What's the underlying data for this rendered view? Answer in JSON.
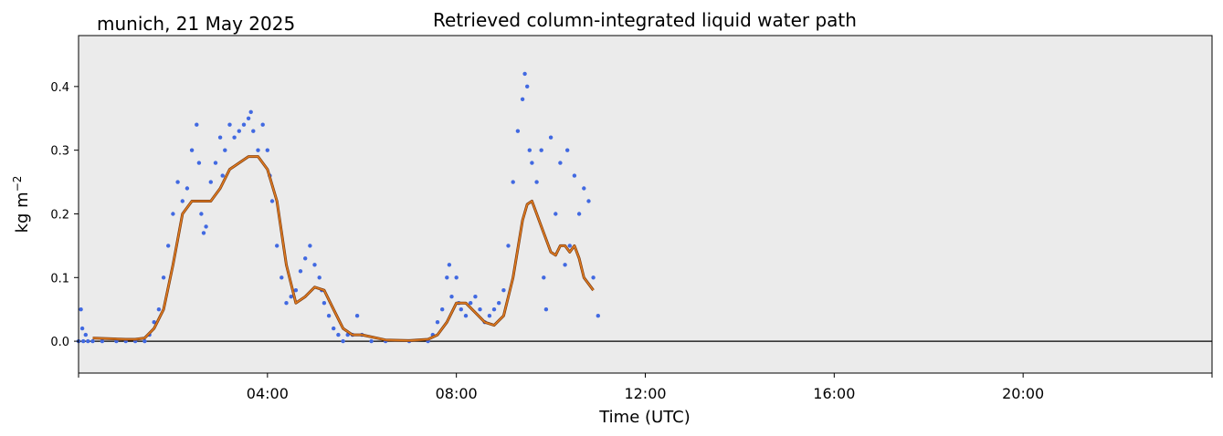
{
  "chart_data": {
    "type": "scatter",
    "title": "Retrieved column-integrated liquid water path",
    "subtitle": "munich, 21 May 2025",
    "xlabel": "Time (UTC)",
    "ylabel": "kg m",
    "ylabel_sup": "−2",
    "xlim": [
      0,
      24
    ],
    "ylim": [
      -0.05,
      0.48
    ],
    "x_ticks": [
      0,
      4,
      8,
      12,
      16,
      20,
      24
    ],
    "x_tick_labels": [
      "",
      "04:00",
      "08:00",
      "12:00",
      "16:00",
      "20:00",
      ""
    ],
    "y_ticks": [
      0.0,
      0.1,
      0.2,
      0.3,
      0.4
    ],
    "y_tick_labels": [
      "0.0",
      "0.1",
      "0.2",
      "0.3",
      "0.4"
    ],
    "grid": false,
    "zero_line": true,
    "colors": {
      "background": "#ebebeb",
      "scatter": "#4169e1",
      "smooth": "#e07b1f"
    },
    "series": [
      {
        "kind": "points",
        "x": [
          0.0,
          0.05,
          0.08,
          0.1,
          0.15,
          0.2,
          0.3,
          0.5,
          0.8,
          1.0,
          1.2,
          1.4,
          1.5,
          1.6,
          1.7,
          1.8,
          1.9,
          2.0,
          2.1,
          2.2,
          2.3,
          2.4,
          2.5,
          2.55,
          2.6,
          2.65,
          2.7,
          2.8,
          2.9,
          3.0,
          3.05,
          3.1,
          3.2,
          3.3,
          3.4,
          3.5,
          3.6,
          3.65,
          3.7,
          3.8,
          3.9,
          4.0,
          4.05,
          4.1,
          4.2,
          4.3,
          4.4,
          4.5,
          4.6,
          4.7,
          4.8,
          4.9,
          5.0,
          5.1,
          5.15,
          5.2,
          5.3,
          5.4,
          5.5,
          5.6,
          5.7,
          5.8,
          5.9,
          6.0,
          6.2,
          6.5,
          7.0,
          7.4,
          7.5,
          7.6,
          7.7,
          7.8,
          7.85,
          7.9,
          8.0,
          8.05,
          8.1,
          8.2,
          8.3,
          8.4,
          8.5,
          8.6,
          8.7,
          8.8,
          8.9,
          9.0,
          9.1,
          9.2,
          9.3,
          9.4,
          9.45,
          9.5,
          9.55,
          9.6,
          9.7,
          9.8,
          9.85,
          9.9,
          10.0,
          10.1,
          10.2,
          10.3,
          10.35,
          10.4,
          10.5,
          10.6,
          10.7,
          10.8,
          10.9,
          11.0
        ],
        "y": [
          0.0,
          0.05,
          0.02,
          0.0,
          0.01,
          0.0,
          0.0,
          0.0,
          0.0,
          0.0,
          0.0,
          0.0,
          0.01,
          0.03,
          0.05,
          0.1,
          0.15,
          0.2,
          0.25,
          0.22,
          0.24,
          0.3,
          0.34,
          0.28,
          0.2,
          0.17,
          0.18,
          0.25,
          0.28,
          0.32,
          0.26,
          0.3,
          0.34,
          0.32,
          0.33,
          0.34,
          0.35,
          0.36,
          0.33,
          0.3,
          0.34,
          0.3,
          0.26,
          0.22,
          0.15,
          0.1,
          0.06,
          0.07,
          0.08,
          0.11,
          0.13,
          0.15,
          0.12,
          0.1,
          0.08,
          0.06,
          0.04,
          0.02,
          0.01,
          0.0,
          0.01,
          0.01,
          0.04,
          0.01,
          0.0,
          0.0,
          0.0,
          0.0,
          0.01,
          0.03,
          0.05,
          0.1,
          0.12,
          0.07,
          0.1,
          0.06,
          0.05,
          0.04,
          0.06,
          0.07,
          0.05,
          0.03,
          0.04,
          0.05,
          0.06,
          0.08,
          0.15,
          0.25,
          0.33,
          0.38,
          0.42,
          0.4,
          0.3,
          0.28,
          0.25,
          0.3,
          0.1,
          0.05,
          0.32,
          0.2,
          0.28,
          0.12,
          0.3,
          0.15,
          0.26,
          0.2,
          0.24,
          0.22,
          0.1,
          0.04
        ]
      },
      {
        "kind": "smoothed-line",
        "x": [
          0.3,
          1.0,
          1.2,
          1.4,
          1.6,
          1.8,
          2.0,
          2.2,
          2.4,
          2.6,
          2.8,
          3.0,
          3.2,
          3.4,
          3.6,
          3.8,
          4.0,
          4.2,
          4.4,
          4.6,
          4.8,
          5.0,
          5.2,
          5.4,
          5.6,
          5.8,
          6.0,
          6.5,
          7.0,
          7.4,
          7.6,
          7.8,
          8.0,
          8.2,
          8.4,
          8.6,
          8.8,
          9.0,
          9.2,
          9.4,
          9.5,
          9.6,
          9.7,
          9.8,
          9.9,
          10.0,
          10.1,
          10.2,
          10.3,
          10.4,
          10.5,
          10.6,
          10.7,
          10.8,
          10.9
        ],
        "y": [
          0.005,
          0.003,
          0.003,
          0.005,
          0.02,
          0.05,
          0.12,
          0.2,
          0.22,
          0.22,
          0.22,
          0.24,
          0.27,
          0.28,
          0.29,
          0.29,
          0.27,
          0.22,
          0.12,
          0.06,
          0.07,
          0.085,
          0.08,
          0.05,
          0.02,
          0.01,
          0.01,
          0.002,
          0.001,
          0.003,
          0.01,
          0.03,
          0.06,
          0.06,
          0.045,
          0.03,
          0.025,
          0.04,
          0.1,
          0.19,
          0.215,
          0.22,
          0.2,
          0.18,
          0.16,
          0.14,
          0.135,
          0.15,
          0.15,
          0.14,
          0.15,
          0.13,
          0.1,
          0.09,
          0.08
        ]
      }
    ]
  }
}
